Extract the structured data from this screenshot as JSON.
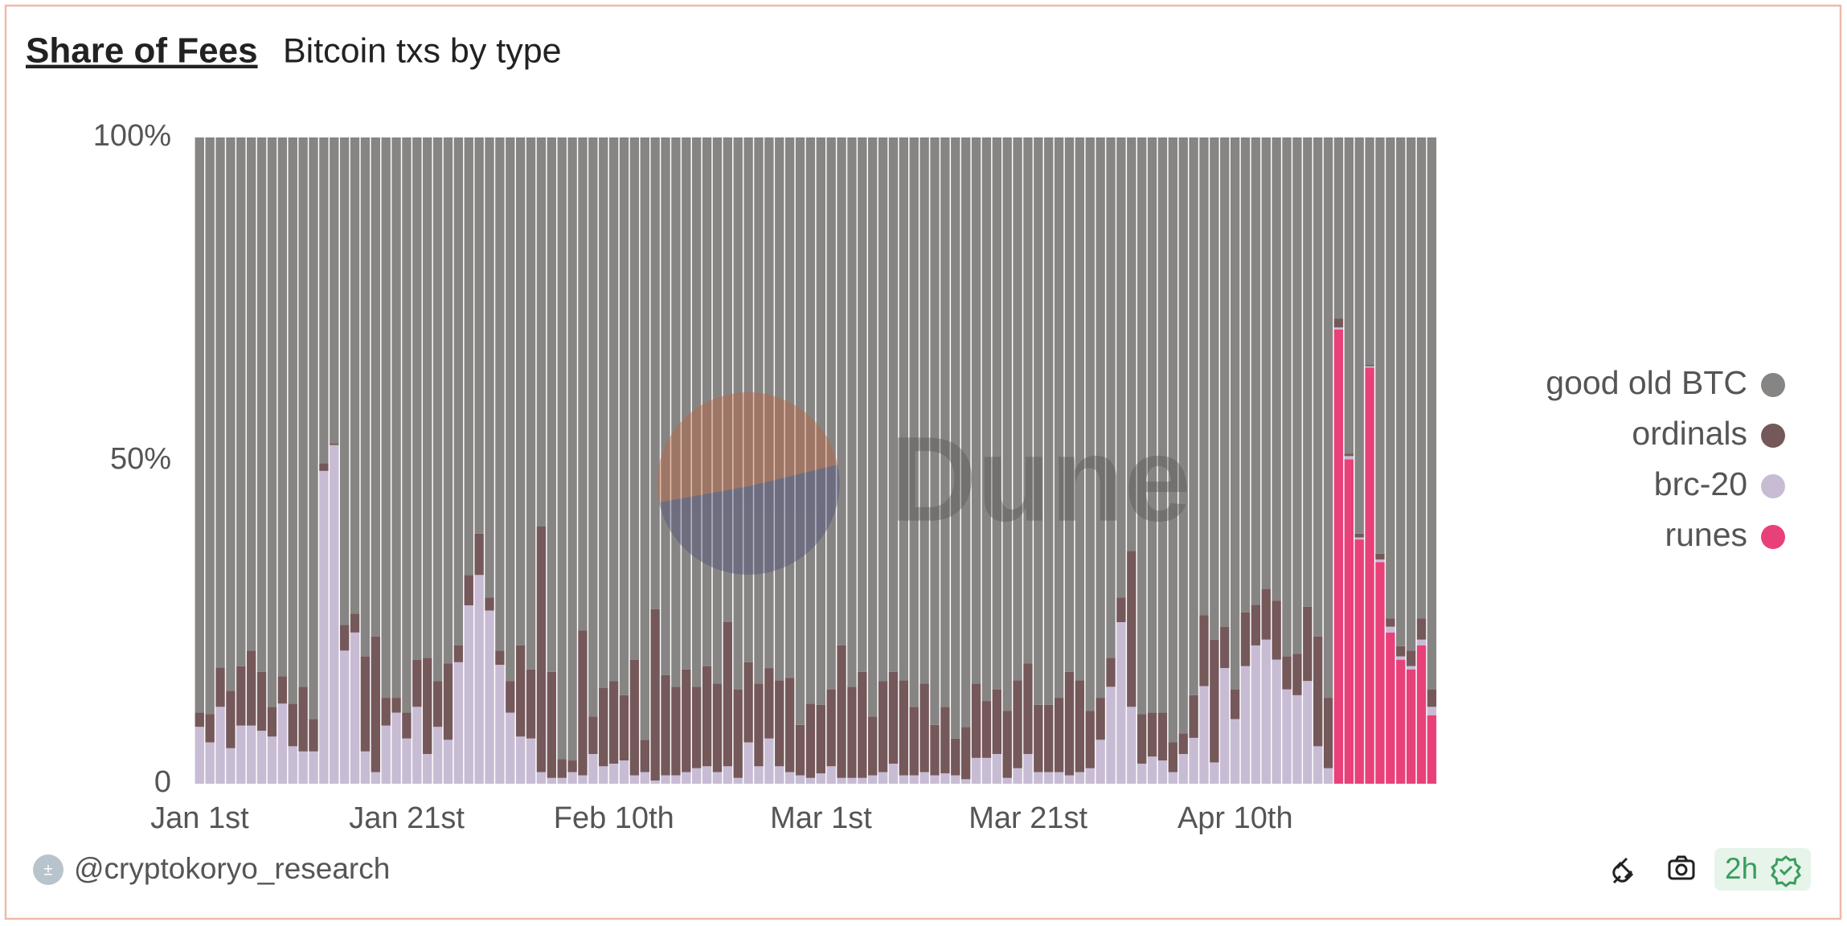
{
  "chart_data": {
    "type": "stacked_bar",
    "title": "Share of Fees",
    "subtitle": "Bitcoin txs by type",
    "watermark": "Dune",
    "categories": [
      "Jan 1st",
      null,
      null,
      null,
      null,
      null,
      null,
      null,
      null,
      null,
      null,
      null,
      null,
      null,
      null,
      null,
      null,
      null,
      null,
      null,
      "Jan 21st",
      null,
      null,
      null,
      null,
      null,
      null,
      null,
      null,
      null,
      null,
      null,
      null,
      null,
      null,
      null,
      null,
      null,
      null,
      null,
      "Feb 10th",
      null,
      null,
      null,
      null,
      null,
      null,
      null,
      null,
      null,
      null,
      null,
      null,
      null,
      null,
      null,
      null,
      null,
      null,
      null,
      "Mar 1st",
      null,
      null,
      null,
      null,
      null,
      null,
      null,
      null,
      null,
      null,
      null,
      null,
      null,
      null,
      null,
      null,
      null,
      null,
      null,
      "Mar 21st",
      null,
      null,
      null,
      null,
      null,
      null,
      null,
      null,
      null,
      null,
      null,
      null,
      null,
      null,
      null,
      null,
      null,
      null,
      null,
      "Apr 10th",
      null,
      null,
      null,
      null,
      null,
      null,
      null,
      null,
      null,
      null,
      null,
      null,
      null,
      null,
      null,
      null,
      null,
      null,
      null
    ],
    "series": [
      {
        "name": "good old BTC",
        "color": "#878583",
        "values": [
          89,
          89.2,
          82,
          85.6,
          81.8,
          79.4,
          82.7,
          88.1,
          83.4,
          87.6,
          85,
          90,
          50.4,
          47.3,
          75.4,
          73.7,
          80.3,
          77.2,
          86.7,
          86.7,
          89,
          80.8,
          80.5,
          84.1,
          81.4,
          78.6,
          67.7,
          61.3,
          71.2,
          79.4,
          84.1,
          78.6,
          82.3,
          60.2,
          82.7,
          96.2,
          96.4,
          76.3,
          89.6,
          85.2,
          84.1,
          86.3,
          80.8,
          93.2,
          73,
          83.2,
          85,
          82.3,
          85,
          81.8,
          84.5,
          75,
          85.4,
          81.2,
          84.5,
          82.1,
          84,
          83.6,
          90.9,
          87.6,
          87.8,
          85.4,
          78.6,
          85,
          82.7,
          89.6,
          84.1,
          82.7,
          84,
          88.1,
          84.5,
          90.9,
          88.1,
          93,
          91.2,
          84.5,
          87.2,
          85.4,
          88.7,
          84,
          81.4,
          87.8,
          87.8,
          86.7,
          82.7,
          84,
          88.7,
          86.7,
          80.5,
          71.2,
          64,
          89.2,
          89,
          89,
          93.6,
          92.2,
          86.3,
          73.9,
          77.7,
          75.7,
          85.4,
          73.5,
          72.3,
          69.9,
          71.7,
          80.3,
          79.9,
          72.6,
          77.2,
          86.7,
          28,
          48.9,
          61.3,
          35.2,
          64.4,
          74.4,
          78.7,
          79.4,
          74.4,
          85.4
        ]
      },
      {
        "name": "ordinals",
        "color": "#75585a",
        "values": [
          2.2,
          4.4,
          6.1,
          8.9,
          9.2,
          11.6,
          9.1,
          4.6,
          4.2,
          6.6,
          10,
          5,
          1.2,
          0.3,
          4,
          2.9,
          14.7,
          21,
          4.3,
          2.3,
          4,
          7.3,
          14.9,
          7.1,
          11.8,
          2.6,
          4.7,
          6.4,
          2,
          2.2,
          4.9,
          14.1,
          10.7,
          38,
          16.4,
          2.9,
          1.8,
          22.4,
          5.8,
          12.1,
          12.8,
          10.1,
          17.9,
          5,
          26.5,
          15.5,
          13.7,
          15.9,
          12.6,
          15.5,
          13.7,
          22.3,
          13.7,
          12.4,
          12.8,
          10.9,
          13.3,
          14.6,
          7.8,
          11.5,
          10.6,
          11.9,
          20.5,
          14.1,
          16.4,
          9.1,
          14.1,
          14.2,
          14.7,
          10.6,
          13.7,
          7.8,
          10.3,
          5.7,
          8.1,
          11.5,
          8.8,
          10,
          10.4,
          13.6,
          14,
          10.4,
          10.4,
          11.5,
          16,
          14.2,
          8.9,
          6.5,
          4.5,
          3.8,
          24.1,
          7.7,
          6.8,
          7.4,
          4.6,
          3.2,
          6.6,
          11,
          19,
          6.4,
          4.6,
          8.3,
          6.3,
          7.8,
          9.1,
          5.1,
          6.4,
          11.5,
          17,
          10.9,
          1.4,
          0.4,
          0.6,
          0.2,
          0.9,
          1.3,
          1.6,
          2.4,
          3.3,
          2.7
        ]
      },
      {
        "name": "brc-20",
        "color": "#c8bcd4",
        "values": [
          8.8,
          6.4,
          11.9,
          5.5,
          9,
          9,
          8.2,
          7.3,
          12.4,
          5.8,
          5,
          5,
          48.4,
          52.4,
          20.6,
          23.4,
          5,
          1.8,
          9,
          11,
          7,
          11.9,
          4.6,
          8.8,
          6.8,
          18.8,
          27.6,
          32.3,
          26.8,
          18.4,
          11,
          7.3,
          7,
          1.8,
          0.9,
          0.9,
          1.8,
          1.3,
          4.6,
          2.7,
          3.1,
          3.6,
          1.3,
          1.8,
          0.5,
          1.3,
          1.3,
          1.8,
          2.4,
          2.7,
          1.8,
          2.7,
          0.9,
          6.4,
          2.7,
          7,
          2.7,
          1.8,
          1.3,
          0.9,
          1.6,
          2.7,
          0.9,
          0.9,
          0.9,
          1.3,
          1.8,
          3.1,
          1.3,
          1.3,
          1.8,
          1.3,
          1.6,
          1.3,
          0.7,
          4,
          4,
          4.6,
          0.9,
          2.4,
          4.6,
          1.8,
          1.8,
          1.8,
          1.3,
          1.8,
          2.4,
          6.8,
          15,
          25,
          11.9,
          3.1,
          4.2,
          3.6,
          1.8,
          4.6,
          7.1,
          15.1,
          3.3,
          17.9,
          10,
          18.2,
          21.4,
          22.3,
          19.2,
          14.6,
          13.7,
          15.9,
          5.8,
          2.4,
          0.3,
          0.5,
          0.3,
          0.2,
          0.4,
          0.9,
          0.5,
          0.5,
          0.9,
          1.3
        ]
      },
      {
        "name": "runes",
        "color": "#e8417a",
        "values": [
          0,
          0,
          0,
          0,
          0,
          0,
          0,
          0,
          0,
          0,
          0,
          0,
          0,
          0,
          0,
          0,
          0,
          0,
          0,
          0,
          0,
          0,
          0,
          0,
          0,
          0,
          0,
          0,
          0,
          0,
          0,
          0,
          0,
          0,
          0,
          0,
          0,
          0,
          0,
          0,
          0,
          0,
          0,
          0,
          0,
          0,
          0,
          0,
          0,
          0,
          0,
          0,
          0,
          0,
          0,
          0,
          0,
          0,
          0,
          0,
          0,
          0,
          0,
          0,
          0,
          0,
          0,
          0,
          0,
          0,
          0,
          0,
          0,
          0,
          0,
          0,
          0,
          0,
          0,
          0,
          0,
          0,
          0,
          0,
          0,
          0,
          0,
          0,
          0,
          0,
          0,
          0,
          0,
          0,
          0,
          0,
          0,
          0,
          0,
          0,
          0,
          0,
          0,
          0,
          0,
          0,
          0,
          0,
          0,
          0,
          70.3,
          50.2,
          37.8,
          64.4,
          34.3,
          23.4,
          19.2,
          17.7,
          21.4,
          10.6
        ]
      }
    ],
    "ylim": [
      0,
      100
    ],
    "yticks": [
      0,
      {
        "value": 50,
        "label": "50%"
      },
      {
        "value": 100,
        "label": "100%"
      }
    ],
    "grid": false,
    "legend": "right"
  },
  "footer": {
    "author": "@cryptokoryo_research",
    "freshness": "2h"
  }
}
